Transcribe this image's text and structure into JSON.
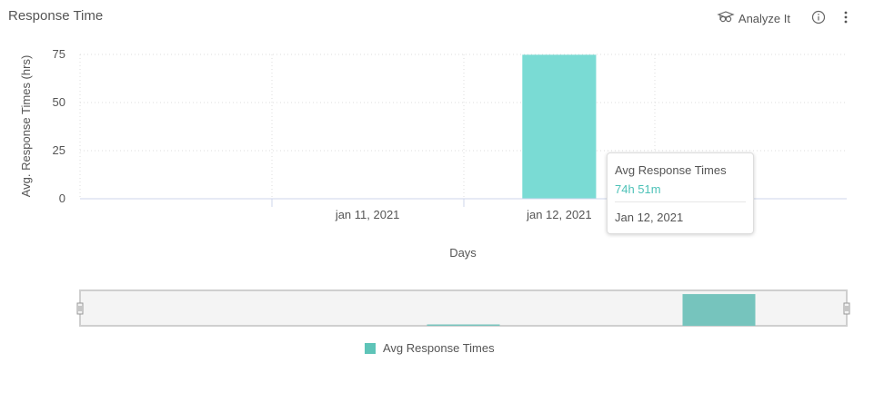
{
  "header": {
    "title": "Response Time",
    "analyze_label": "Analyze It"
  },
  "tooltip": {
    "series": "Avg Response Times",
    "value": "74h 51m",
    "date": "Jan 12, 2021"
  },
  "legend": {
    "label": "Avg Response Times"
  },
  "colors": {
    "bar": "#7adbd4",
    "navigator_bar": "#76c4bd",
    "tooltip_value": "#4ec2b8",
    "legend": "#5ec4b8"
  },
  "chart_data": {
    "type": "bar",
    "categories": [
      "",
      "jan 11, 2021",
      "jan 12, 2021",
      ""
    ],
    "series": [
      {
        "name": "Avg Response Times",
        "values": [
          0,
          0,
          74.85,
          0
        ]
      }
    ],
    "xlabel": "Days",
    "ylabel": "Avg. Response Times (hrs)",
    "ylim": [
      0,
      75
    ],
    "yticks": [
      0,
      25,
      50,
      75
    ],
    "grid": true,
    "legend_position": "bottom"
  }
}
